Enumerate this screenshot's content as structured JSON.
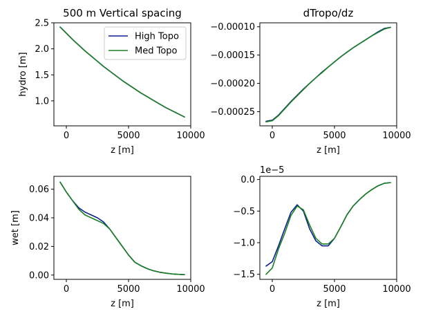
{
  "figure": {
    "width": 628,
    "height": 457
  },
  "chart_data": [
    {
      "id": "hydro",
      "type": "line",
      "title": "500 m Vertical spacing",
      "xlabel": "z [m]",
      "ylabel": "hydro [m]",
      "offset_text": "",
      "xlim": [
        -1000,
        10000
      ],
      "ylim": [
        0.52,
        2.5
      ],
      "xticks": [
        0,
        5000,
        10000
      ],
      "xtick_labels": [
        "0",
        "5000",
        "10000"
      ],
      "yticks": [
        1.0,
        1.5,
        2.0,
        2.5
      ],
      "ytick_labels": [
        "1.0",
        "1.5",
        "2.0",
        "2.5"
      ],
      "legend": {
        "position": "top-right",
        "entries": [
          "High Topo",
          "Med Topo"
        ]
      },
      "series": [
        {
          "name": "High Topo",
          "color": "#0a1f8f",
          "x": [
            -500,
            0,
            500,
            1000,
            1500,
            2000,
            2500,
            3000,
            3500,
            4000,
            4500,
            5000,
            5500,
            6000,
            6500,
            7000,
            7500,
            8000,
            8500,
            9000,
            9500
          ],
          "y": [
            2.42,
            2.3,
            2.18,
            2.07,
            1.96,
            1.86,
            1.76,
            1.66,
            1.57,
            1.48,
            1.39,
            1.31,
            1.23,
            1.15,
            1.08,
            1.01,
            0.94,
            0.87,
            0.81,
            0.75,
            0.69
          ]
        },
        {
          "name": "Med Topo",
          "color": "#1a7f22",
          "x": [
            -500,
            0,
            500,
            1000,
            1500,
            2000,
            2500,
            3000,
            3500,
            4000,
            4500,
            5000,
            5500,
            6000,
            6500,
            7000,
            7500,
            8000,
            8500,
            9000,
            9500
          ],
          "y": [
            2.42,
            2.3,
            2.18,
            2.07,
            1.96,
            1.86,
            1.76,
            1.66,
            1.57,
            1.48,
            1.39,
            1.31,
            1.23,
            1.15,
            1.08,
            1.01,
            0.94,
            0.87,
            0.81,
            0.75,
            0.69
          ]
        }
      ]
    },
    {
      "id": "dtropo",
      "type": "line",
      "title": "dTropo/dz",
      "xlabel": "z [m]",
      "ylabel": "",
      "offset_text": "",
      "xlim": [
        -1000,
        10000
      ],
      "ylim": [
        -0.000275,
        -9.3e-05
      ],
      "xticks": [
        0,
        5000,
        10000
      ],
      "xtick_labels": [
        "0",
        "5000",
        "10000"
      ],
      "yticks": [
        -0.00025,
        -0.0002,
        -0.00015,
        -0.0001
      ],
      "ytick_labels": [
        "−0.00025",
        "−0.00020",
        "−0.00015",
        "−0.00010"
      ],
      "legend": null,
      "series": [
        {
          "name": "High Topo",
          "color": "#0a1f8f",
          "x": [
            -500,
            0,
            500,
            1000,
            1500,
            2000,
            2500,
            3000,
            3500,
            4000,
            4500,
            5000,
            5500,
            6000,
            6500,
            7000,
            7500,
            8000,
            8500,
            9000,
            9500
          ],
          "y": [
            -0.000267,
            -0.000265,
            -0.000256,
            -0.000244,
            -0.000232,
            -0.000221,
            -0.00021,
            -0.0002,
            -0.00019,
            -0.00018,
            -0.000171,
            -0.000162,
            -0.000153,
            -0.000145,
            -0.000137,
            -0.00013,
            -0.000123,
            -0.000116,
            -0.000109,
            -0.000103,
            -0.000101
          ]
        },
        {
          "name": "Med Topo",
          "color": "#1a7f22",
          "x": [
            -500,
            0,
            500,
            1000,
            1500,
            2000,
            2500,
            3000,
            3500,
            4000,
            4500,
            5000,
            5500,
            6000,
            6500,
            7000,
            7500,
            8000,
            8500,
            9000,
            9500
          ],
          "y": [
            -0.000268,
            -0.000266,
            -0.000257,
            -0.000245,
            -0.000233,
            -0.000222,
            -0.000211,
            -0.0002,
            -0.00019,
            -0.000181,
            -0.000171,
            -0.000162,
            -0.000153,
            -0.000145,
            -0.000137,
            -0.00013,
            -0.000123,
            -0.000116,
            -0.00011,
            -0.000104,
            -0.000101
          ]
        }
      ]
    },
    {
      "id": "wet",
      "type": "line",
      "title": "",
      "xlabel": "z [m]",
      "ylabel": "wet [m]",
      "offset_text": "",
      "xlim": [
        -1000,
        10000
      ],
      "ylim": [
        -0.003,
        0.069
      ],
      "xticks": [
        0,
        5000,
        10000
      ],
      "xtick_labels": [
        "0",
        "5000",
        "10000"
      ],
      "yticks": [
        0.0,
        0.02,
        0.04,
        0.06
      ],
      "ytick_labels": [
        "0.00",
        "0.02",
        "0.04",
        "0.06"
      ],
      "legend": null,
      "series": [
        {
          "name": "High Topo",
          "color": "#0a1f8f",
          "x": [
            -500,
            0,
            500,
            1000,
            1500,
            2000,
            2500,
            3000,
            3500,
            4000,
            4500,
            5000,
            5500,
            6000,
            6500,
            7000,
            7500,
            8000,
            8500,
            9000,
            9500
          ],
          "y": [
            0.065,
            0.058,
            0.052,
            0.047,
            0.044,
            0.042,
            0.04,
            0.037,
            0.032,
            0.026,
            0.02,
            0.014,
            0.009,
            0.0065,
            0.0045,
            0.003,
            0.002,
            0.0013,
            0.0008,
            0.0005,
            0.0003
          ]
        },
        {
          "name": "Med Topo",
          "color": "#1a7f22",
          "x": [
            -500,
            0,
            500,
            1000,
            1500,
            2000,
            2500,
            3000,
            3500,
            4000,
            4500,
            5000,
            5500,
            6000,
            6500,
            7000,
            7500,
            8000,
            8500,
            9000,
            9500
          ],
          "y": [
            0.065,
            0.058,
            0.052,
            0.046,
            0.042,
            0.04,
            0.038,
            0.036,
            0.032,
            0.026,
            0.02,
            0.014,
            0.009,
            0.0065,
            0.0045,
            0.003,
            0.002,
            0.0013,
            0.0008,
            0.0005,
            0.0003
          ]
        }
      ]
    },
    {
      "id": "diff",
      "type": "line",
      "title": "",
      "xlabel": "z [m]",
      "ylabel": "",
      "offset_text": "1e−5",
      "xlim": [
        -1000,
        10000
      ],
      "ylim": [
        -1.58,
        0.05
      ],
      "xticks": [
        0,
        5000,
        10000
      ],
      "xtick_labels": [
        "0",
        "5000",
        "10000"
      ],
      "yticks": [
        0.0,
        -0.5,
        -1.0,
        -1.5
      ],
      "ytick_labels": [
        "0.0",
        "−0.5",
        "−1.0",
        "−1.5"
      ],
      "legend": null,
      "series": [
        {
          "name": "High Topo",
          "color": "#0a1f8f",
          "x": [
            -500,
            0,
            500,
            1000,
            1500,
            2000,
            2500,
            3000,
            3500,
            4000,
            4500,
            5000,
            5500,
            6000,
            6500,
            7000,
            7500,
            8000,
            8500,
            9000,
            9500
          ],
          "y": [
            -1.37,
            -1.3,
            -1.05,
            -0.78,
            -0.52,
            -0.4,
            -0.5,
            -0.78,
            -0.97,
            -1.05,
            -1.05,
            -0.93,
            -0.75,
            -0.56,
            -0.42,
            -0.32,
            -0.23,
            -0.16,
            -0.1,
            -0.06,
            -0.05
          ]
        },
        {
          "name": "Med Topo",
          "color": "#1a7f22",
          "x": [
            -500,
            0,
            500,
            1000,
            1500,
            2000,
            2500,
            3000,
            3500,
            4000,
            4500,
            5000,
            5500,
            6000,
            6500,
            7000,
            7500,
            8000,
            8500,
            9000,
            9500
          ],
          "y": [
            -1.5,
            -1.4,
            -1.1,
            -0.85,
            -0.57,
            -0.42,
            -0.48,
            -0.72,
            -0.93,
            -1.02,
            -1.02,
            -0.93,
            -0.75,
            -0.56,
            -0.42,
            -0.32,
            -0.23,
            -0.16,
            -0.1,
            -0.06,
            -0.05
          ]
        }
      ]
    }
  ]
}
